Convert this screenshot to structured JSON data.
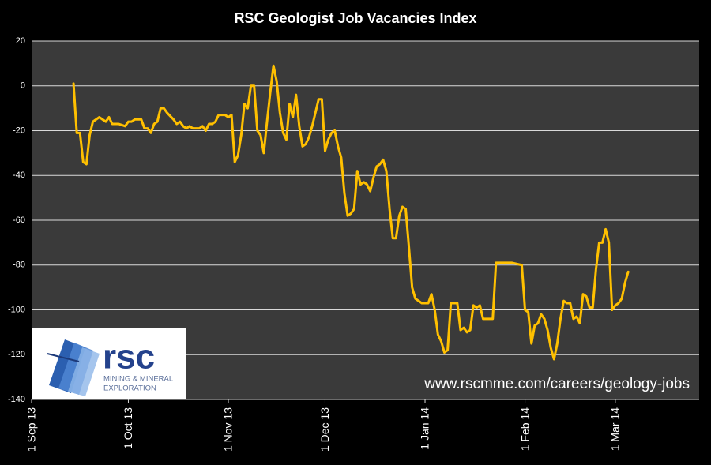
{
  "chart_data": {
    "type": "line",
    "title": "RSC Geologist Job Vacancies Index",
    "annotation": "www.rscmme.com/careers/geology-jobs",
    "logo": {
      "name": "rsc",
      "lines": [
        "MINING & MINERAL",
        "EXPLORATION"
      ]
    },
    "color": "#ffc000",
    "grid": true,
    "xlim": [
      "2013-09-01",
      "2014-03-27"
    ],
    "xticks": [
      {
        "value": "2013-09-01",
        "label": "1 Sep 13"
      },
      {
        "value": "2013-10-01",
        "label": "1 Oct 13"
      },
      {
        "value": "2013-11-01",
        "label": "1 Nov 13"
      },
      {
        "value": "2013-12-01",
        "label": "1 Dec 13"
      },
      {
        "value": "2014-01-01",
        "label": "1 Jan 14"
      },
      {
        "value": "2014-02-01",
        "label": "1 Feb 14"
      },
      {
        "value": "2014-03-01",
        "label": "1 Mar 14"
      }
    ],
    "ylim": [
      -140,
      20
    ],
    "yticks": [
      20,
      0,
      -20,
      -40,
      -60,
      -80,
      -100,
      -120,
      -140
    ],
    "x": [
      "2013-09-14",
      "2013-09-15",
      "2013-09-16",
      "2013-09-17",
      "2013-09-18",
      "2013-09-19",
      "2013-09-20",
      "2013-09-22",
      "2013-09-24",
      "2013-09-25",
      "2013-09-26",
      "2013-09-28",
      "2013-09-30",
      "2013-10-01",
      "2013-10-02",
      "2013-10-03",
      "2013-10-05",
      "2013-10-06",
      "2013-10-07",
      "2013-10-08",
      "2013-10-09",
      "2013-10-10",
      "2013-10-11",
      "2013-10-12",
      "2013-10-13",
      "2013-10-15",
      "2013-10-16",
      "2013-10-17",
      "2013-10-18",
      "2013-10-19",
      "2013-10-20",
      "2013-10-21",
      "2013-10-23",
      "2013-10-24",
      "2013-10-25",
      "2013-10-26",
      "2013-10-27",
      "2013-10-28",
      "2013-10-29",
      "2013-10-31",
      "2013-11-01",
      "2013-11-02",
      "2013-11-03",
      "2013-11-04",
      "2013-11-05",
      "2013-11-06",
      "2013-11-07",
      "2013-11-08",
      "2013-11-09",
      "2013-11-10",
      "2013-11-11",
      "2013-11-12",
      "2013-11-13",
      "2013-11-14",
      "2013-11-15",
      "2013-11-16",
      "2013-11-17",
      "2013-11-18",
      "2013-11-19",
      "2013-11-20",
      "2013-11-21",
      "2013-11-22",
      "2013-11-23",
      "2013-11-24",
      "2013-11-25",
      "2013-11-26",
      "2013-11-27",
      "2013-11-28",
      "2013-11-29",
      "2013-11-30",
      "2013-12-01",
      "2013-12-02",
      "2013-12-03",
      "2013-12-04",
      "2013-12-05",
      "2013-12-06",
      "2013-12-07",
      "2013-12-08",
      "2013-12-09",
      "2013-12-10",
      "2013-12-11",
      "2013-12-12",
      "2013-12-13",
      "2013-12-14",
      "2013-12-15",
      "2013-12-16",
      "2013-12-17",
      "2013-12-18",
      "2013-12-19",
      "2013-12-20",
      "2013-12-21",
      "2013-12-22",
      "2013-12-23",
      "2013-12-24",
      "2013-12-25",
      "2013-12-26",
      "2013-12-27",
      "2013-12-28",
      "2013-12-29",
      "2013-12-30",
      "2013-12-31",
      "2014-01-01",
      "2014-01-02",
      "2014-01-03",
      "2014-01-04",
      "2014-01-05",
      "2014-01-06",
      "2014-01-07",
      "2014-01-08",
      "2014-01-09",
      "2014-01-10",
      "2014-01-11",
      "2014-01-12",
      "2014-01-13",
      "2014-01-14",
      "2014-01-15",
      "2014-01-16",
      "2014-01-17",
      "2014-01-18",
      "2014-01-19",
      "2014-01-20",
      "2014-01-22",
      "2014-01-23",
      "2014-01-28",
      "2014-01-31",
      "2014-02-01",
      "2014-02-02",
      "2014-02-03",
      "2014-02-04",
      "2014-02-05",
      "2014-02-06",
      "2014-02-07",
      "2014-02-08",
      "2014-02-09",
      "2014-02-10",
      "2014-02-11",
      "2014-02-12",
      "2014-02-13",
      "2014-02-14",
      "2014-02-15",
      "2014-02-16",
      "2014-02-17",
      "2014-02-18",
      "2014-02-19",
      "2014-02-20",
      "2014-02-21",
      "2014-02-22",
      "2014-02-23",
      "2014-02-24",
      "2014-02-25",
      "2014-02-26",
      "2014-02-27",
      "2014-02-28",
      "2014-03-01",
      "2014-03-02",
      "2014-03-03",
      "2014-03-04",
      "2014-03-05"
    ],
    "values": [
      1,
      -21,
      -21,
      -34,
      -35,
      -22,
      -16,
      -14,
      -16,
      -14,
      -17,
      -17,
      -18,
      -16,
      -16,
      -15,
      -15,
      -19,
      -19,
      -21,
      -17,
      -16,
      -10,
      -10,
      -12,
      -15,
      -17,
      -16,
      -18,
      -19,
      -18,
      -19,
      -19,
      -18,
      -20,
      -17,
      -17,
      -16,
      -13,
      -13,
      -14,
      -13,
      -34,
      -31,
      -22,
      -8,
      -10,
      0,
      0,
      -20,
      -22,
      -30,
      -16,
      -3,
      9,
      2,
      -12,
      -21,
      -24,
      -8,
      -14,
      -4,
      -18,
      -27,
      -26,
      -23,
      -18,
      -12,
      -6,
      -6,
      -29,
      -24,
      -21,
      -20,
      -27,
      -32,
      -48,
      -58,
      -57,
      -55,
      -38,
      -44,
      -43,
      -44,
      -47,
      -41,
      -36,
      -35,
      -33,
      -38,
      -55,
      -68,
      -68,
      -58,
      -54,
      -55,
      -72,
      -90,
      -95,
      -96,
      -97,
      -97,
      -97,
      -93,
      -100,
      -111,
      -114,
      -119,
      -118,
      -97,
      -97,
      -97,
      -109,
      -108,
      -110,
      -109,
      -98,
      -99,
      -98,
      -104,
      -104,
      -104,
      -79,
      -79,
      -80,
      -100,
      -101,
      -115,
      -107,
      -106,
      -102,
      -104,
      -109,
      -117,
      -122,
      -115,
      -104,
      -96,
      -97,
      -97,
      -104,
      -103,
      -106,
      -93,
      -94,
      -99,
      -99,
      -82,
      -70,
      -70,
      -64,
      -70,
      -100,
      -98,
      -97,
      -95,
      -88,
      -83
    ]
  }
}
